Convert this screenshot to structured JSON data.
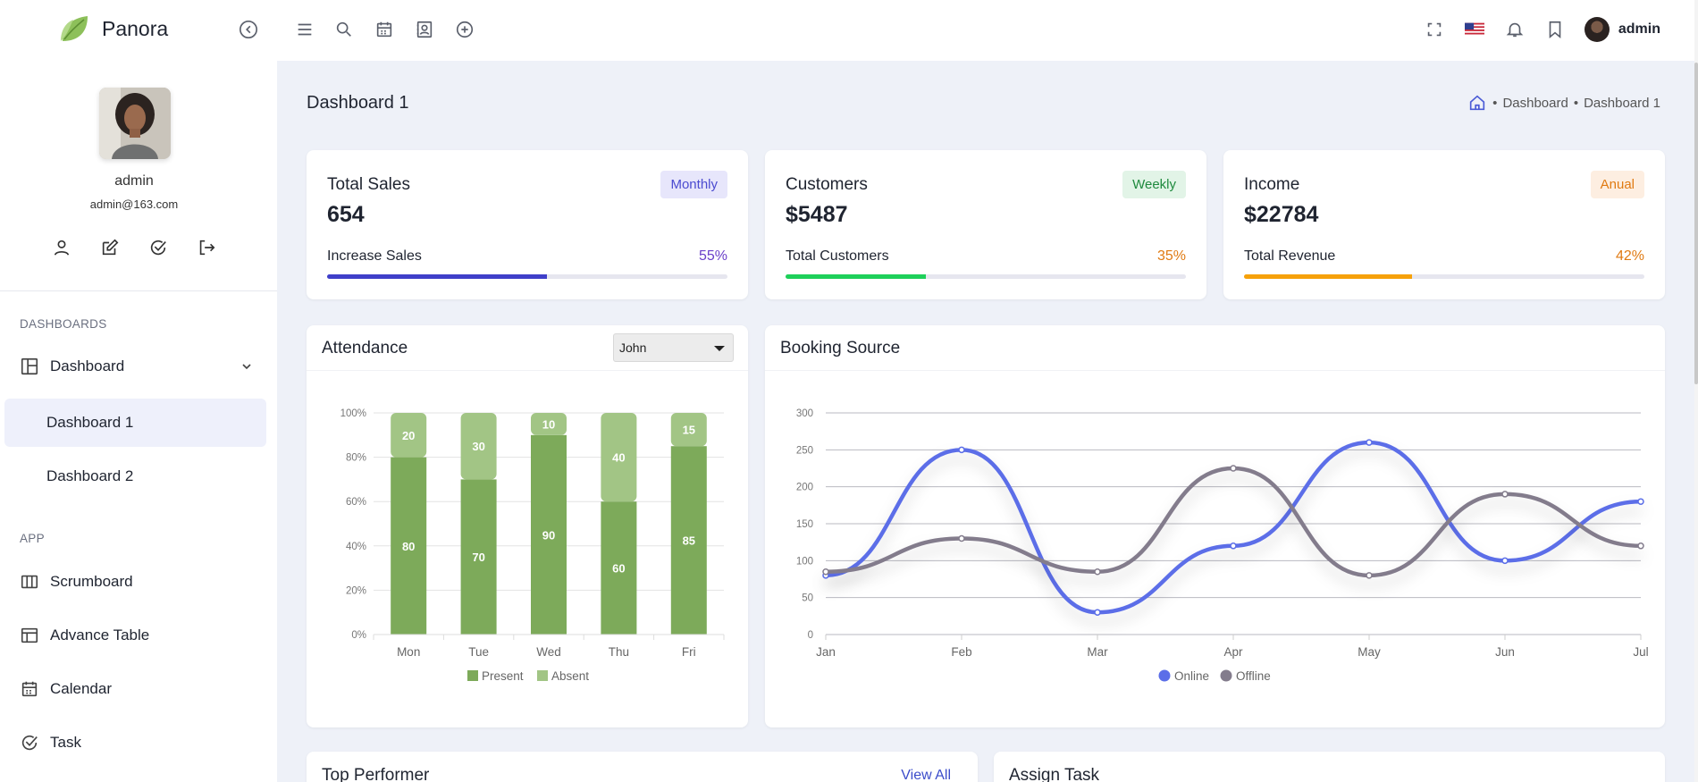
{
  "app": {
    "name": "Panora"
  },
  "topbar": {
    "user_name": "admin"
  },
  "sidebar": {
    "profile_name": "admin",
    "profile_email": "admin@163.com",
    "section_dashboards": "DASHBOARDS",
    "dashboard_label": "Dashboard",
    "sub_items": [
      "Dashboard 1",
      "Dashboard 2"
    ],
    "section_app": "APP",
    "app_items": [
      "Scrumboard",
      "Advance Table",
      "Calendar",
      "Task"
    ]
  },
  "page": {
    "title": "Dashboard 1",
    "breadcrumb": [
      "Dashboard",
      "Dashboard 1"
    ]
  },
  "stats": [
    {
      "title": "Total Sales",
      "value": "654",
      "badge": "Monthly",
      "sub": "Increase Sales",
      "pct_label": "55%",
      "pct": 55,
      "color": "#3f3fc9",
      "pct_color": "#6a3fc9",
      "badge_bg": "#e7e6fb",
      "badge_fg": "#4b4bd0"
    },
    {
      "title": "Customers",
      "value": "$5487",
      "badge": "Weekly",
      "sub": "Total Customers",
      "pct_label": "35%",
      "pct": 35,
      "color": "#1ed05a",
      "pct_color": "#e07a12",
      "badge_bg": "#e2f4e7",
      "badge_fg": "#1f8a3e"
    },
    {
      "title": "Income",
      "value": "$22784",
      "badge": "Anual",
      "sub": "Total Revenue",
      "pct_label": "42%",
      "pct": 42,
      "color": "#f6a10a",
      "pct_color": "#e07a12",
      "badge_bg": "#fdeee1",
      "badge_fg": "#e07a12"
    }
  ],
  "attendance": {
    "title": "Attendance",
    "selected": "John"
  },
  "booking": {
    "title": "Booking Source"
  },
  "bottom": {
    "left_title": "Top Performer",
    "view_all": "View All",
    "right_title": "Assign Task"
  },
  "chart_data": [
    {
      "type": "bar",
      "stacked": true,
      "categories": [
        "Mon",
        "Tue",
        "Wed",
        "Thu",
        "Fri"
      ],
      "series": [
        {
          "name": "Present",
          "values": [
            80,
            70,
            90,
            60,
            85
          ],
          "color": "#7daa5a"
        },
        {
          "name": "Absent",
          "values": [
            20,
            30,
            10,
            40,
            15
          ],
          "color": "#a2c585"
        }
      ],
      "yticks": [
        "0%",
        "20%",
        "40%",
        "60%",
        "80%",
        "100%"
      ],
      "ylim": [
        0,
        100
      ],
      "legend": "bottom"
    },
    {
      "type": "line",
      "categories": [
        "Jan",
        "Feb",
        "Mar",
        "Apr",
        "May",
        "Jun",
        "Jul"
      ],
      "series": [
        {
          "name": "Online",
          "values": [
            80,
            250,
            30,
            120,
            260,
            100,
            180
          ],
          "color": "#5b6ee8"
        },
        {
          "name": "Offline",
          "values": [
            85,
            130,
            85,
            225,
            80,
            190,
            120
          ],
          "color": "#837c8c"
        }
      ],
      "yticks": [
        "0",
        "50",
        "100",
        "150",
        "200",
        "250",
        "300"
      ],
      "ylim": [
        0,
        300
      ],
      "legend": "bottom"
    }
  ]
}
